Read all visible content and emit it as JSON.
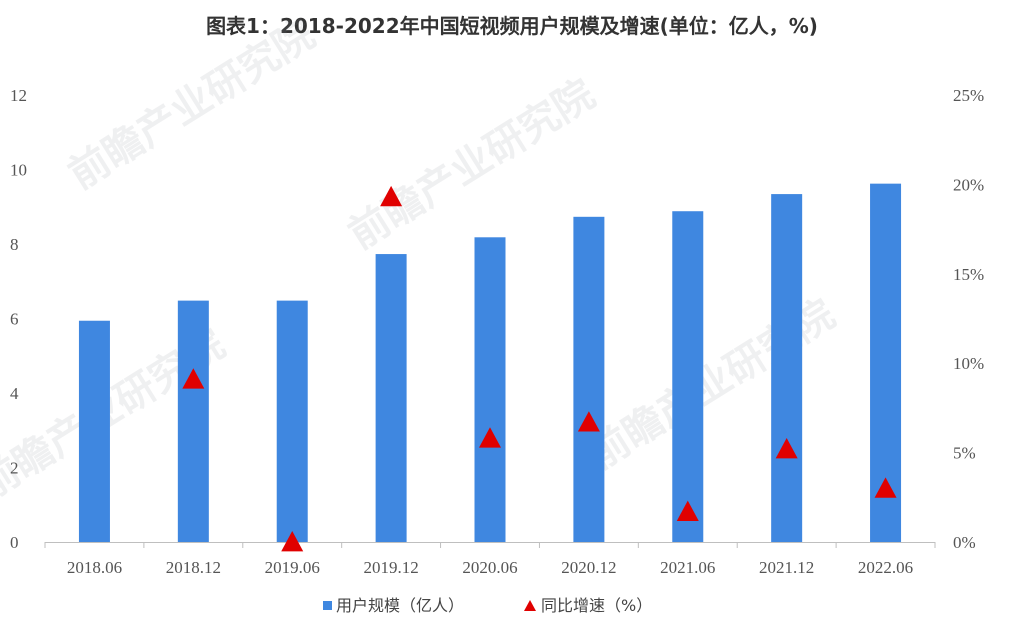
{
  "chart_data": {
    "type": "bar",
    "title": "图表1：2018-2022年中国短视频用户规模及增速(单位：亿人，%)",
    "categories": [
      "2018.06",
      "2018.12",
      "2019.06",
      "2019.12",
      "2020.06",
      "2020.12",
      "2021.06",
      "2021.12",
      "2022.06"
    ],
    "series": [
      {
        "name": "用户规模（亿人）",
        "type": "bar",
        "axis": "left",
        "color": "#3f87e0",
        "values": [
          5.94,
          6.48,
          6.48,
          7.73,
          8.18,
          8.73,
          8.88,
          9.34,
          9.62
        ]
      },
      {
        "name": "同比增速（%）",
        "type": "scatter",
        "marker": "triangle",
        "axis": "right",
        "color": "#e00000",
        "values": [
          null,
          9.1,
          0.0,
          19.3,
          5.8,
          6.7,
          1.7,
          5.2,
          3.0
        ]
      }
    ],
    "y_left": {
      "min": 0,
      "max": 12,
      "ticks": [
        "0",
        "2",
        "4",
        "6",
        "8",
        "10",
        "12"
      ]
    },
    "y_right": {
      "min": 0,
      "max": 25,
      "ticks": [
        "0%",
        "5%",
        "10%",
        "15%",
        "20%",
        "25%"
      ]
    },
    "grid": false,
    "legend_position": "bottom"
  },
  "watermark": "前瞻产业研究院"
}
